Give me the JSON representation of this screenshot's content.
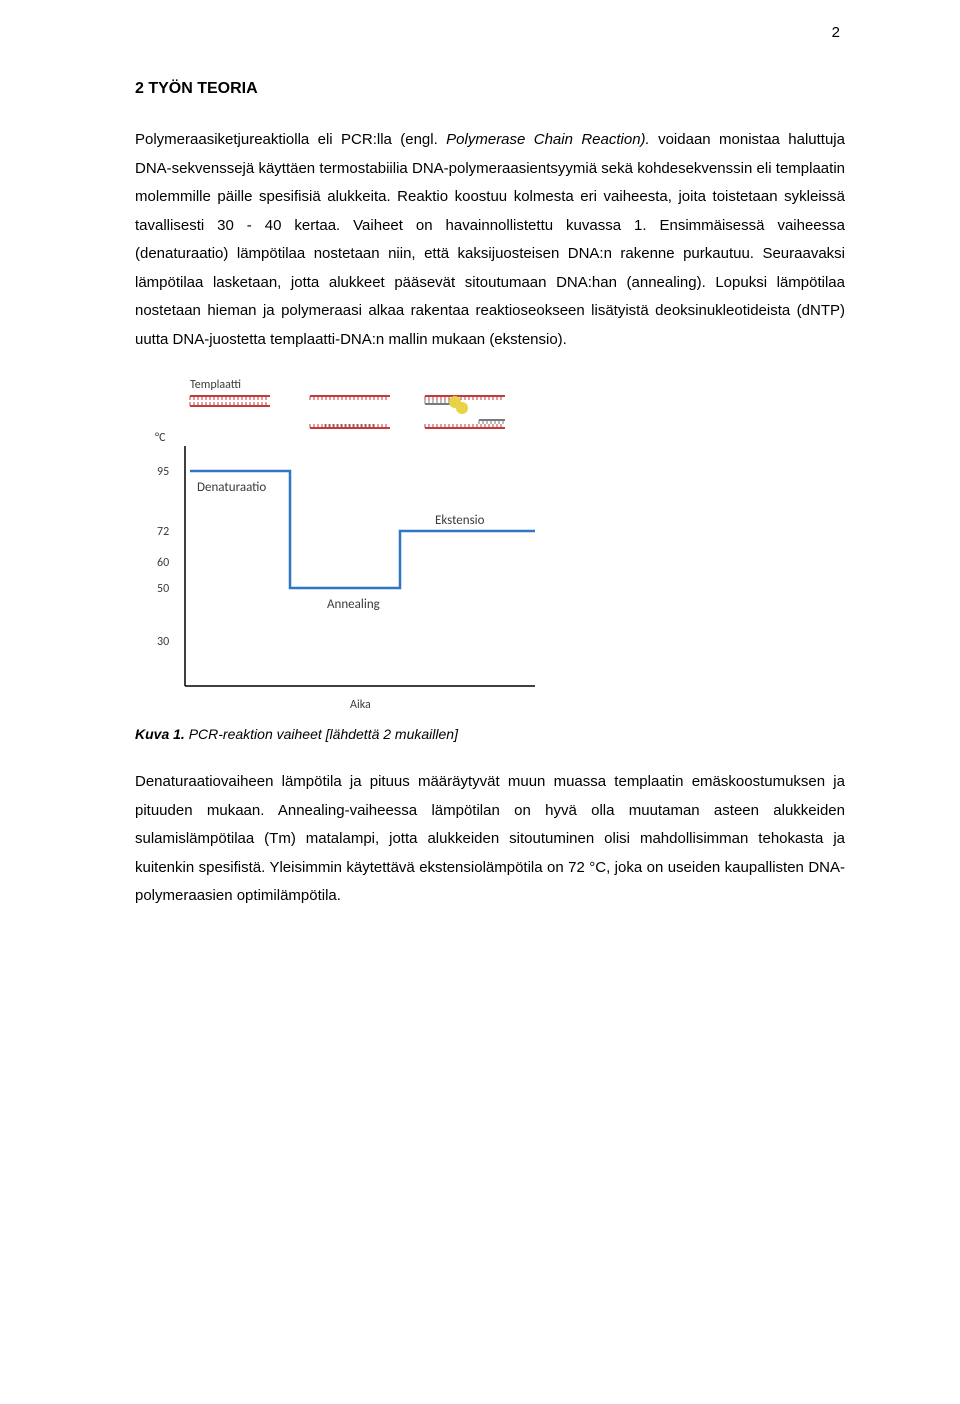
{
  "page_number": "2",
  "heading": "2   TYÖN TEORIA",
  "paragraphs": {
    "p1_a": "Polymeraasiketjureaktiolla eli PCR:lla (engl. ",
    "p1_italic": "Polymerase Chain Reaction). ",
    "p1_b": "voidaan monistaa haluttuja DNA-sekvenssejä käyttäen termostabiilia DNA-polymeraasientsyymiä sekä kohdesekvenssin eli templaatin molemmille päille spesifisiä alukkeita. Reaktio koostuu kolmesta eri vaiheesta, joita toistetaan sykleissä tavallisesti 30 - 40 kertaa. Vaiheet on havainnollistettu kuvassa 1. Ensimmäisessä vaiheessa (denaturaatio) lämpötilaa nostetaan niin, että kaksijuosteisen DNA:n rakenne purkautuu. Seuraavaksi lämpötilaa lasketaan, jotta alukkeet pääsevät sitoutumaan DNA:han (annealing). Lopuksi lämpötilaa nostetaan hieman ja polymeraasi alkaa rakentaa reaktioseokseen lisätyistä deoksinukleotideista (dNTP) uutta DNA-juostetta templaatti-DNA:n mallin mukaan (ekstensio).",
    "p2": "Denaturaatiovaiheen lämpötila ja pituus määräytyvät muun muassa templaatin emäskoostumuksen ja pituuden mukaan. Annealing-vaiheessa lämpötilan on hyvä olla muutaman asteen alukkeiden sulamislämpötilaa (Tm) matalampi, jotta alukkeiden sitoutuminen olisi mahdollisimman tehokasta ja kuitenkin spesifistä. Yleisimmin käytettävä ekstensiolämpötila on 72 °C, joka on useiden kaupallisten DNA-polymeraasien optimilämpötila."
  },
  "figure": {
    "caption_bold": "Kuva 1.",
    "caption_rest": " PCR-reaktion vaiheet [lähdettä 2 mukaillen]",
    "label_template": "Templaatti",
    "label_yaxis": "°C",
    "label_xaxis": "Aika",
    "label_denat": "Denaturaatio",
    "label_anneal": "Annealing",
    "label_ext": "Ekstensio",
    "yticks": [
      "95",
      "72",
      "60",
      "50",
      "30"
    ],
    "ytick_pos": [
      35,
      95,
      126,
      152,
      205
    ],
    "colors": {
      "axis": "#000000",
      "line": "#2f77c4",
      "dna_red": "#c23b3b",
      "dna_grey": "#7a7a7a",
      "poly_yellow": "#e8d246",
      "text": "#3b3b3b"
    },
    "curve": {
      "x": [
        55,
        155,
        155,
        265,
        265,
        400
      ],
      "y": [
        35,
        35,
        152,
        152,
        95,
        95
      ]
    },
    "axis": {
      "x0": 50,
      "y0": 250,
      "xmax": 400,
      "ymin": 10
    }
  }
}
